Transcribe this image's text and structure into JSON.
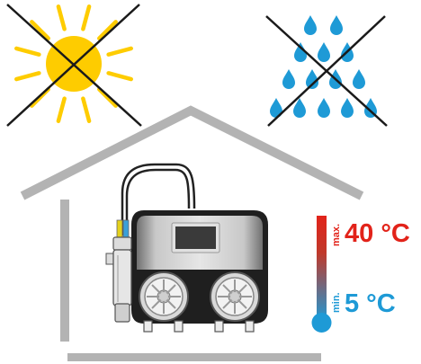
{
  "colors": {
    "sun": "#fecc00",
    "sun_rays": "#fecc00",
    "drops": "#1e9ad6",
    "house": "#b3b3b3",
    "cross": "#1a1a1a",
    "hot": "#e2231a",
    "cold": "#1e9ad6",
    "device_body": "#1f1f1f",
    "device_panel": "#a8a8a8",
    "screen": "#3a3a3a"
  },
  "icons": {
    "sun": "sun-icon",
    "rain": "rain-drops-icon",
    "thermometer": "thermometer-icon",
    "device": "dosing-pump-icon"
  },
  "temperature": {
    "max_label": "max.",
    "max_value": "40 °C",
    "min_label": "min.",
    "min_value": "5 °C"
  }
}
